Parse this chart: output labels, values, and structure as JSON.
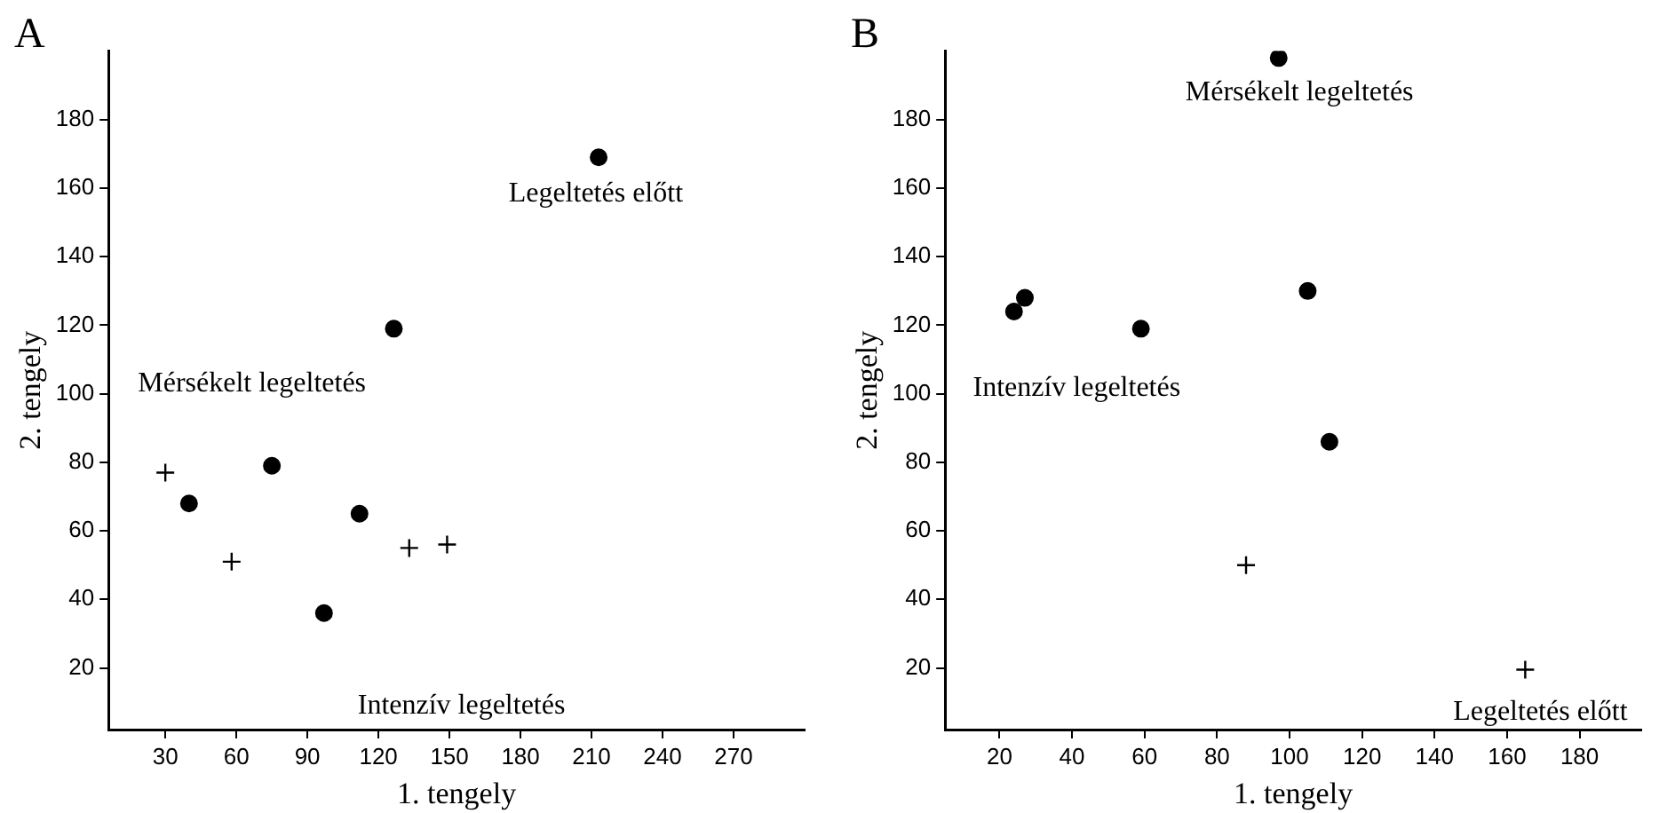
{
  "chart_data": [
    {
      "type": "scatter",
      "title": "A",
      "xlabel": "1. tengely",
      "ylabel": "2. tengely",
      "xlim": [
        6,
        300
      ],
      "ylim": [
        2,
        200
      ],
      "xticks": [
        30,
        60,
        90,
        120,
        150,
        180,
        210,
        240,
        270
      ],
      "yticks": [
        20,
        40,
        60,
        80,
        100,
        120,
        140,
        160,
        180
      ],
      "series": [
        {
          "color": "#000000",
          "marker": "circle",
          "x": [
            213,
            126.5,
            75,
            40,
            112,
            97
          ],
          "values": [
            169,
            119,
            79,
            68,
            65,
            36
          ]
        },
        {
          "color": "#000000",
          "marker": "cross",
          "x": [
            30,
            58,
            133,
            149
          ],
          "values": [
            77,
            51,
            55,
            56
          ]
        }
      ],
      "annotations": [
        "Legeltetés előtt",
        "Mérsékelt legeltetés",
        "Intenzív legeltetés"
      ]
    },
    {
      "type": "scatter",
      "title": "B",
      "xlabel": "1. tengely",
      "ylabel": "2. tengely",
      "xlim": [
        5,
        197
      ],
      "ylim": [
        2,
        200
      ],
      "xticks": [
        20,
        40,
        60,
        80,
        100,
        120,
        140,
        160,
        180
      ],
      "yticks": [
        20,
        40,
        60,
        80,
        100,
        120,
        140,
        160,
        180
      ],
      "series": [
        {
          "color": "#000000",
          "marker": "circle",
          "x": [
            97,
            24,
            27,
            59,
            105,
            111
          ],
          "values": [
            198,
            124,
            128,
            119,
            130,
            86
          ]
        },
        {
          "color": "#000000",
          "marker": "cross",
          "x": [
            88,
            165
          ],
          "values": [
            50,
            19.5
          ]
        }
      ],
      "annotations": [
        "Mérsékelt legeltetés",
        "Intenzív legeltetés",
        "Legeltetés előtt"
      ]
    }
  ]
}
